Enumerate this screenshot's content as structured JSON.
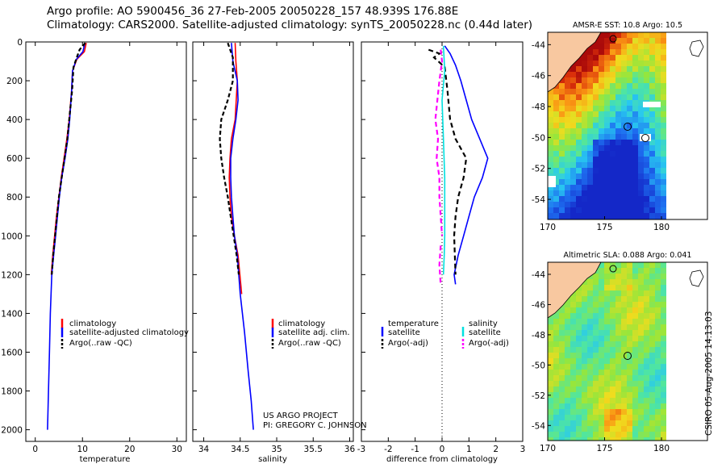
{
  "header": {
    "line1": "Argo profile: AO 5900456_36 27-Feb-2005 20050228_157 48.939S 176.88E",
    "line2": "Climatology: CARS2000. Satellite-adjusted climatology: synTS_20050228.nc (0.44d later)"
  },
  "credit": {
    "project": "US ARGO PROJECT",
    "pi": "PI: GREGORY C. JOHNSON",
    "stamp": "CSIRO 05-Aug-2005 14:13:03"
  },
  "colors": {
    "climatology": "#ff0000",
    "satellite": "#0000ff",
    "argo": "#000000",
    "sal_satellite": "#00e0e0",
    "sal_argo": "#ff00ff",
    "land": "#f8c8a0"
  },
  "chart_data": [
    {
      "id": "temperature",
      "type": "line",
      "xlabel": "temperature",
      "xlim": [
        -2,
        32
      ],
      "ylim": [
        0,
        2060
      ],
      "xticks": [
        0,
        10,
        20,
        30
      ],
      "yticks": [
        0,
        200,
        400,
        600,
        800,
        1000,
        1200,
        1400,
        1600,
        1800,
        2000
      ],
      "legend": [
        "climatology",
        "satellite-adjusted climatology",
        "Argo(..raw -QC)"
      ],
      "series": [
        {
          "name": "climatology",
          "color": "#ff0000",
          "dash": "",
          "x": [
            10.8,
            10.4,
            8.8,
            7.9,
            7.7,
            7.2,
            6.7,
            6.1,
            5.5,
            5.0,
            4.5,
            4.1,
            3.7,
            3.4
          ],
          "y": [
            5,
            50,
            90,
            150,
            250,
            400,
            500,
            600,
            700,
            800,
            900,
            1000,
            1100,
            1200
          ]
        },
        {
          "name": "satellite-adjusted climatology",
          "color": "#0000ff",
          "dash": "",
          "x": [
            10.5,
            10.1,
            8.7,
            7.9,
            7.7,
            7.3,
            6.9,
            6.3,
            5.6,
            5.1,
            4.7,
            4.3,
            3.9,
            3.5,
            3.2,
            3.0,
            2.8,
            2.7,
            2.6
          ],
          "y": [
            5,
            50,
            90,
            150,
            250,
            400,
            500,
            600,
            700,
            800,
            900,
            1000,
            1100,
            1200,
            1400,
            1600,
            1800,
            1900,
            2000
          ]
        },
        {
          "name": "Argo(..raw -QC)",
          "color": "#000000",
          "dash": "5 3",
          "x": [
            10.6,
            9.4,
            8.8,
            8.1,
            7.8,
            7.2,
            6.8,
            6.2,
            5.6,
            5.0,
            4.6,
            4.2,
            3.8,
            3.5
          ],
          "y": [
            5,
            40,
            80,
            130,
            250,
            400,
            500,
            600,
            700,
            800,
            900,
            1000,
            1100,
            1200
          ]
        }
      ]
    },
    {
      "id": "salinity",
      "type": "line",
      "xlabel": "salinity",
      "xlim": [
        33.85,
        36.05
      ],
      "ylim": [
        0,
        2060
      ],
      "xticks": [
        34,
        34.5,
        35,
        35.5,
        36
      ],
      "legend": [
        "climatology",
        "satellite adj. clim.",
        "Argo(..raw -QC)"
      ],
      "series": [
        {
          "name": "climatology",
          "color": "#ff0000",
          "dash": "",
          "x": [
            34.43,
            34.44,
            34.46,
            34.43,
            34.38,
            34.36,
            34.35,
            34.36,
            34.38,
            34.42,
            34.47,
            34.52
          ],
          "y": [
            5,
            100,
            200,
            400,
            500,
            600,
            700,
            800,
            900,
            1000,
            1100,
            1300
          ]
        },
        {
          "name": "satellite adj. clim.",
          "color": "#0000ff",
          "dash": "",
          "x": [
            34.38,
            34.4,
            34.46,
            34.47,
            34.44,
            34.4,
            34.37,
            34.37,
            34.38,
            34.4,
            34.42,
            34.46,
            34.5,
            34.56,
            34.61,
            34.65,
            34.68
          ],
          "y": [
            5,
            100,
            200,
            300,
            400,
            500,
            600,
            700,
            800,
            900,
            1000,
            1100,
            1300,
            1500,
            1700,
            1850,
            2000
          ]
        },
        {
          "name": "Argo(..raw -QC)",
          "color": "#000000",
          "dash": "5 3",
          "x": [
            34.33,
            34.4,
            34.4,
            34.33,
            34.24,
            34.22,
            34.24,
            34.28,
            34.33,
            34.37,
            34.41,
            34.45,
            34.48
          ],
          "y": [
            5,
            80,
            200,
            300,
            400,
            500,
            600,
            700,
            800,
            900,
            1000,
            1100,
            1200
          ]
        }
      ]
    },
    {
      "id": "difference",
      "type": "line",
      "xlabel": "difference from climatology",
      "xlim": [
        -3,
        3
      ],
      "ylim": [
        0,
        2060
      ],
      "xticks": [
        -3,
        -2,
        -1,
        0,
        1,
        2,
        3
      ],
      "legend_left_title": "temperature",
      "legend_left": [
        "satellite",
        "Argo(-adj)"
      ],
      "legend_right_title": "salinity",
      "legend_right": [
        "satellite",
        "Argo(-adj)"
      ],
      "series": [
        {
          "name": "temperature satellite",
          "color": "#0000ff",
          "dash": "",
          "x": [
            0.1,
            0.3,
            0.5,
            0.7,
            0.9,
            1.1,
            1.4,
            1.7,
            1.5,
            1.2,
            1.0,
            0.8,
            0.6,
            0.45,
            0.5
          ],
          "y": [
            20,
            60,
            120,
            200,
            300,
            400,
            500,
            600,
            700,
            800,
            900,
            1000,
            1100,
            1200,
            1250
          ]
        },
        {
          "name": "temperature Argo(-adj)",
          "color": "#000000",
          "dash": "6 4",
          "x": [
            -0.5,
            -0.1,
            -0.3,
            0.1,
            0.2,
            0.3,
            0.5,
            0.9,
            0.8,
            0.6,
            0.5,
            0.45,
            0.5
          ],
          "y": [
            40,
            60,
            80,
            130,
            250,
            400,
            500,
            600,
            700,
            800,
            900,
            1000,
            1200
          ]
        },
        {
          "name": "salinity satellite",
          "color": "#00e0e0",
          "dash": "",
          "x": [
            0.05,
            0.1,
            0.0,
            0.05,
            0.1,
            0.1,
            0.1,
            0.08,
            0.05
          ],
          "y": [
            20,
            150,
            300,
            500,
            700,
            900,
            1000,
            1100,
            1200
          ]
        },
        {
          "name": "salinity Argo(-adj)",
          "color": "#ff00ff",
          "dash": "6 4",
          "x": [
            -0.05,
            0.0,
            -0.1,
            -0.25,
            -0.15,
            -0.2,
            -0.1,
            -0.1,
            0.0
          ],
          "y": [
            40,
            100,
            200,
            400,
            500,
            600,
            700,
            800,
            1000
          ]
        },
        {
          "name": "salinity Argo(-adj) lower",
          "color": "#ff00ff",
          "dash": "6 4",
          "x": [
            -0.05,
            -0.1,
            -0.05
          ],
          "y": [
            1050,
            1150,
            1250
          ]
        }
      ]
    },
    {
      "id": "sst_map",
      "type": "heatmap",
      "title": "AMSR-E SST: 10.8 Argo: 10.5",
      "xticks": [
        170,
        175,
        180
      ],
      "yticks": [
        -44,
        -46,
        -48,
        -50,
        -52,
        -54
      ]
    },
    {
      "id": "sla_map",
      "type": "heatmap",
      "title": "Altimetric SLA: 0.088 Argo: 0.041",
      "xticks": [
        170,
        175,
        180
      ],
      "yticks": [
        -44,
        -46,
        -48,
        -50,
        -52,
        -54
      ]
    }
  ]
}
